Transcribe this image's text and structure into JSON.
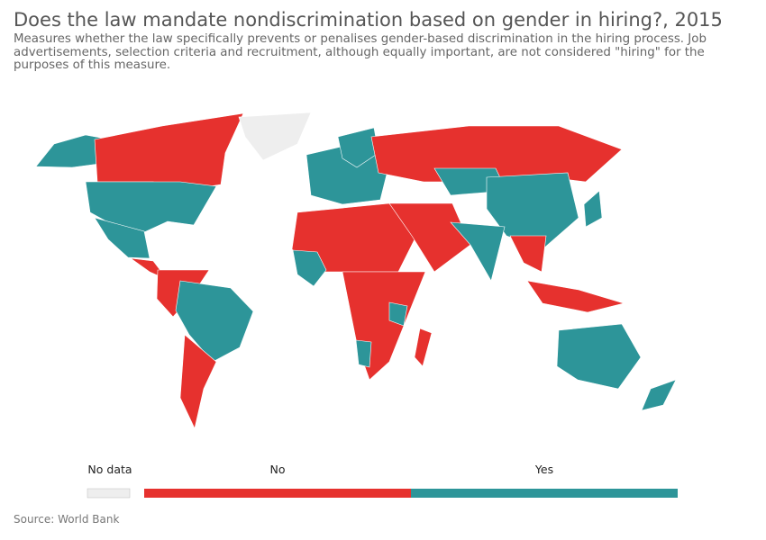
{
  "header": {
    "title": "Does the law mandate nondiscrimination based on gender in hiring?, 2015",
    "subtitle_lines": [
      "Measures whether the law specifically prevents or penalises gender-based discrimination in the hiring process. Job",
      "advertisements, selection criteria and recruitment, although equally important, are not considered \"hiring\" for the",
      "purposes of this measure."
    ]
  },
  "legend": {
    "items": [
      {
        "label": "No data",
        "color": "#eeeeee"
      },
      {
        "label": "No",
        "color": "#e6312e"
      },
      {
        "label": "Yes",
        "color": "#2d9599"
      }
    ]
  },
  "footer": {
    "source": "Source: World Bank"
  }
}
